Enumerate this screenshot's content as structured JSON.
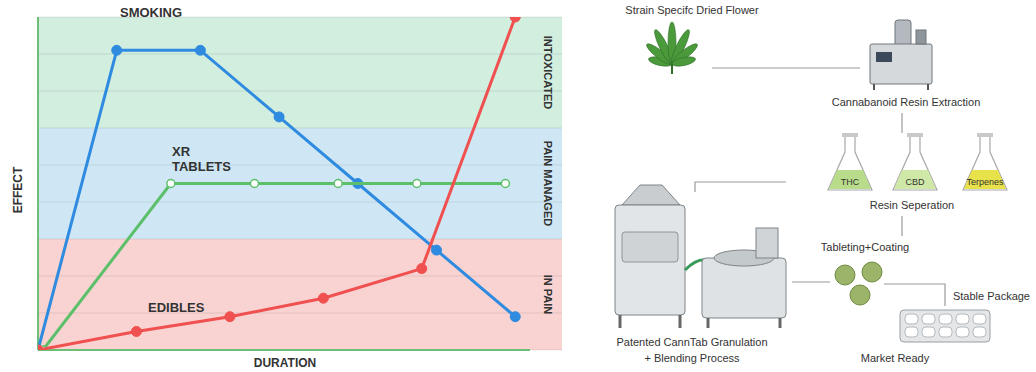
{
  "chart_data": {
    "type": "line",
    "x_label": "DURATION",
    "y_label": "EFFECT",
    "xlim": [
      0,
      10
    ],
    "ylim": [
      0,
      9
    ],
    "yticks": [
      0,
      1,
      2,
      3,
      4,
      5,
      6,
      7,
      8,
      9
    ],
    "grid": true,
    "tick_labels": false,
    "bands": [
      {
        "label": "IN PAIN",
        "from": 0,
        "to": 3,
        "color": "#f8d3d2"
      },
      {
        "label": "PAIN MANAGED",
        "from": 3,
        "to": 6,
        "color": "#cfe7f5"
      },
      {
        "label": "INTOXICATED",
        "from": 6,
        "to": 9,
        "color": "#d2eedf"
      }
    ],
    "series": [
      {
        "name": "SMOKING",
        "color": "#2f8be0",
        "marker": "circle",
        "x": [
          0,
          1.6,
          3.3,
          4.9,
          6.5,
          8.1,
          9.7
        ],
        "values": [
          0,
          8.1,
          8.1,
          6.3,
          4.5,
          2.7,
          0.9
        ]
      },
      {
        "name": "XR TABLETS",
        "color": "#5cbf6a",
        "marker": "hollow",
        "x": [
          0.1,
          2.7,
          4.4,
          6.1,
          7.7,
          9.5
        ],
        "values": [
          0,
          4.5,
          4.5,
          4.5,
          4.5,
          4.5
        ]
      },
      {
        "name": "EDIBLES",
        "color": "#f0504f",
        "marker": "circle",
        "x": [
          0,
          2,
          3.9,
          5.8,
          7.8,
          9.7
        ],
        "values": [
          0,
          0.5,
          0.9,
          1.4,
          2.2,
          9
        ]
      }
    ]
  },
  "diagram": {
    "flower": "Strain Specifc Dried Flower",
    "extraction": "Cannabanoid Resin Extraction",
    "separation": {
      "label": "Resin Seperation",
      "fractions": [
        "THC",
        "CBD",
        "Terpenes"
      ]
    },
    "granulation": [
      "Patented CannTab Granulation",
      "+ Blending Process"
    ],
    "tableting": "Tableting+Coating",
    "package": "Stable Package",
    "market": "Market Ready"
  }
}
